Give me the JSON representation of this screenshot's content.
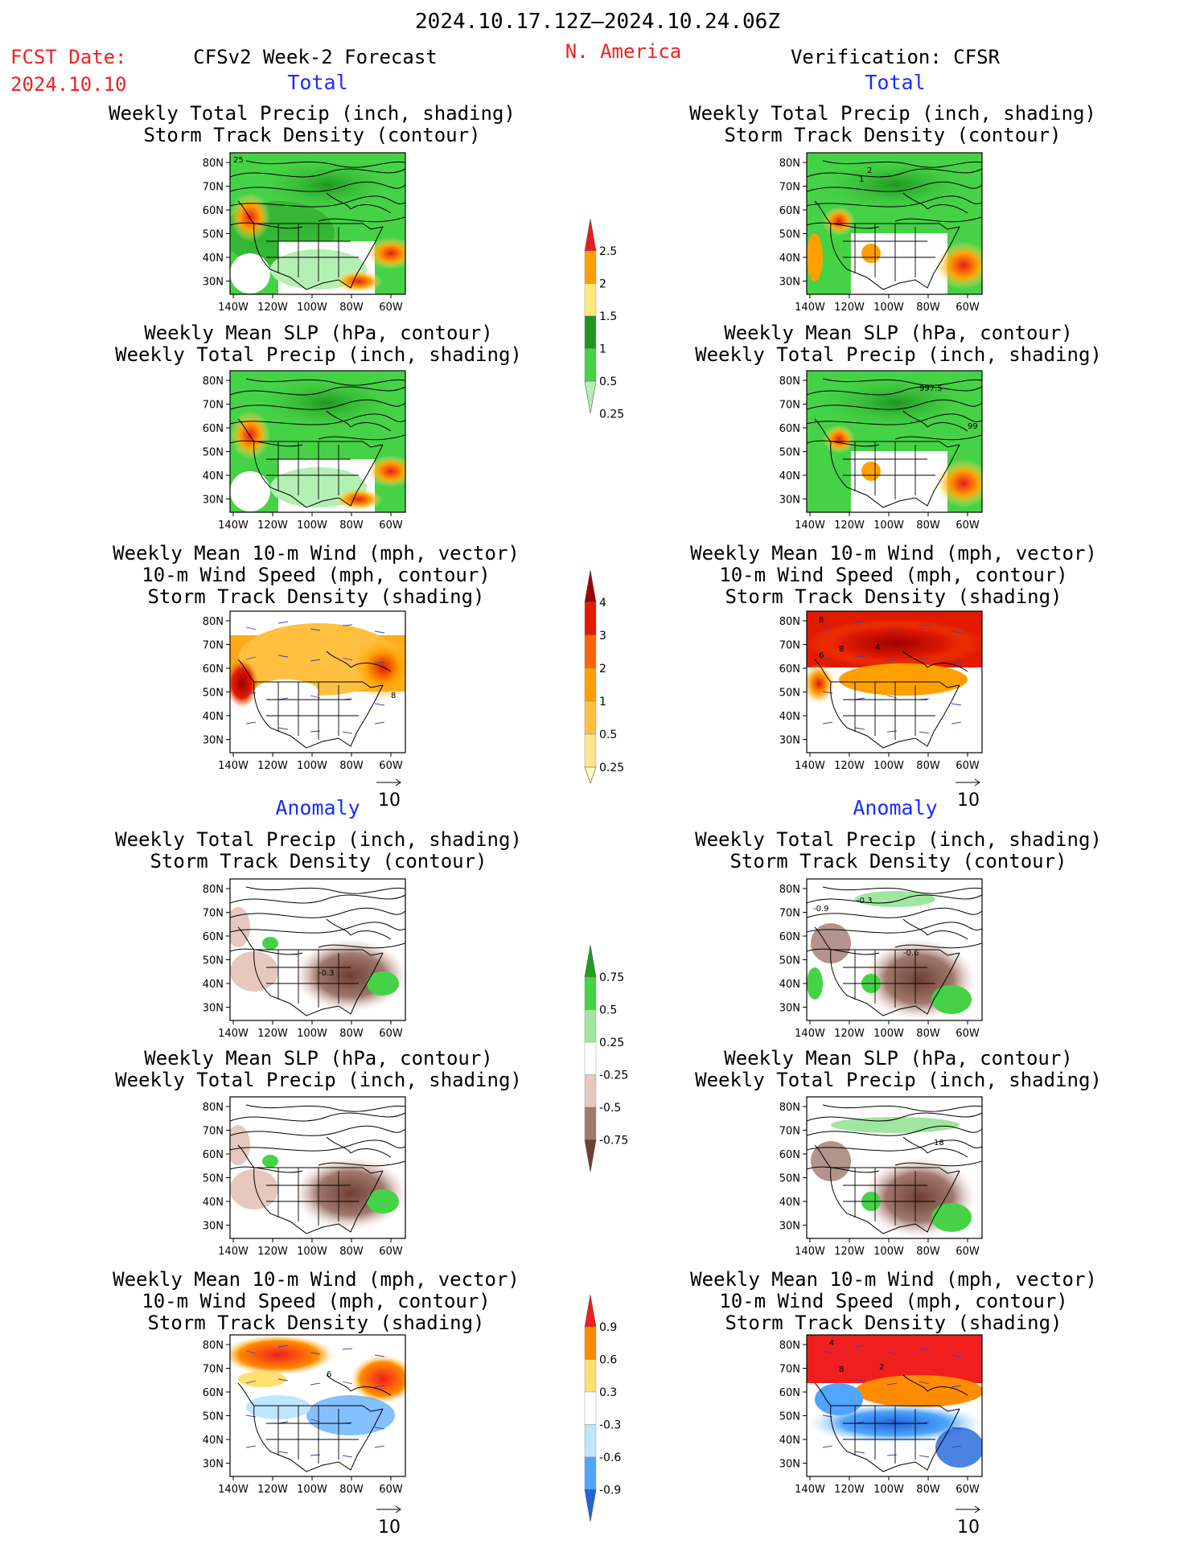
{
  "header": {
    "date_range": "2024.10.17.12Z–2024.10.24.06Z",
    "fcst_label": "FCST Date:",
    "fcst_date": "2024.10.10",
    "left_title": "CFSv2 Week-2 Forecast",
    "region": "N. America",
    "right_title": "Verification: CFSR"
  },
  "sections": {
    "total": "Total",
    "anomaly": "Anomaly"
  },
  "panel_titles": {
    "precip_storm": [
      "Weekly Total Precip (inch, shading)",
      "Storm Track Density (contour)"
    ],
    "slp_precip": [
      "Weekly Mean SLP (hPa, contour)",
      "Weekly Total Precip (inch, shading)"
    ],
    "wind_storm": [
      "Weekly Mean 10-m Wind (mph, vector)",
      "10-m Wind Speed (mph, contour)",
      "Storm Track Density (shading)"
    ]
  },
  "axes": {
    "lat_labels": [
      "80N",
      "70N",
      "60N",
      "50N",
      "40N",
      "30N"
    ],
    "lon_labels": [
      "140W",
      "120W",
      "100W",
      "80W",
      "60W"
    ]
  },
  "vector_reference": "10",
  "map_annotations": {
    "fcst_total_precip": "25",
    "obs_total_precip": [
      "2",
      "1"
    ],
    "obs_total_slp": [
      "997.5",
      "99"
    ],
    "obs_total_wind": [
      "8",
      "4",
      "6",
      "8"
    ],
    "fcst_total_wind": "8",
    "fcst_anom_precip": "-0.3",
    "obs_anom_precip": [
      "-0.9",
      "-0.3",
      "-0.6"
    ],
    "obs_anom_slp": "18",
    "fcst_anom_wind": "6",
    "obs_anom_wind": [
      "4",
      "8",
      "2"
    ]
  },
  "colorbars": {
    "precip_total": {
      "labels": [
        "2.5",
        "2",
        "1.5",
        "1",
        "0.5",
        "0.25"
      ],
      "colors": [
        "#e81d1d",
        "#ffa000",
        "#ffe97c",
        "#1e961e",
        "#46d246",
        "#b4f0b4"
      ]
    },
    "storm_total": {
      "labels": [
        "4",
        "3",
        "2",
        "1",
        "0.5",
        "0.25"
      ],
      "colors": [
        "#a00000",
        "#e11a00",
        "#ff6400",
        "#ffa000",
        "#ffc040",
        "#ffe58c",
        "#fff8c0"
      ]
    },
    "precip_anom": {
      "labels": [
        "0.75",
        "0.5",
        "0.25",
        "-0.25",
        "-0.5",
        "-0.75"
      ],
      "colors": [
        "#1e9e1e",
        "#46d246",
        "#a0e6a0",
        "#ffffff",
        "#e6c8be",
        "#a0786e",
        "#6e4032"
      ]
    },
    "storm_anom": {
      "labels": [
        "0.9",
        "0.6",
        "0.3",
        "-0.3",
        "-0.6",
        "-0.9"
      ],
      "colors": [
        "#f01e1e",
        "#ff8c00",
        "#ffe070",
        "#ffffff",
        "#bfe6ff",
        "#50a5ff",
        "#1e64dc"
      ]
    }
  },
  "colors": {
    "header_red": "#ee2222",
    "section_blue": "#1a2cff"
  }
}
